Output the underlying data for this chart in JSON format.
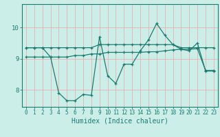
{
  "xlabel": "Humidex (Indice chaleur)",
  "bg_color": "#cceee8",
  "grid_color": "#e8b0b0",
  "line_color": "#1a7a6e",
  "xlim": [
    -0.5,
    23.5
  ],
  "ylim": [
    7.45,
    10.75
  ],
  "yticks": [
    8,
    9,
    10
  ],
  "xticks": [
    0,
    1,
    2,
    3,
    4,
    5,
    6,
    7,
    8,
    9,
    10,
    11,
    12,
    13,
    14,
    15,
    16,
    17,
    18,
    19,
    20,
    21,
    22,
    23
  ],
  "line1_x": [
    0,
    1,
    2,
    3,
    4,
    5,
    6,
    7,
    8,
    9,
    10,
    11,
    12,
    13,
    14,
    15,
    16,
    17,
    18,
    19,
    20,
    21,
    22,
    23
  ],
  "line1_y": [
    9.35,
    9.35,
    9.35,
    9.35,
    9.35,
    9.35,
    9.35,
    9.35,
    9.35,
    9.45,
    9.45,
    9.45,
    9.45,
    9.45,
    9.45,
    9.45,
    9.45,
    9.45,
    9.45,
    9.35,
    9.35,
    9.35,
    9.35,
    9.35
  ],
  "line2_x": [
    0,
    1,
    2,
    3,
    4,
    5,
    6,
    7,
    8,
    9,
    10,
    11,
    12,
    13,
    14,
    15,
    16,
    17,
    18,
    19,
    20,
    21,
    22,
    23
  ],
  "line2_y": [
    9.05,
    9.05,
    9.05,
    9.05,
    9.05,
    9.05,
    9.1,
    9.1,
    9.15,
    9.15,
    9.2,
    9.2,
    9.2,
    9.2,
    9.2,
    9.22,
    9.22,
    9.25,
    9.28,
    9.3,
    9.3,
    9.32,
    8.62,
    8.62
  ],
  "line3_x": [
    0,
    1,
    2,
    3,
    4,
    5,
    6,
    7,
    8,
    9,
    10,
    11,
    12,
    13,
    14,
    15,
    16,
    17,
    18,
    19,
    20,
    21,
    22,
    23
  ],
  "line3_y": [
    9.35,
    9.35,
    9.35,
    9.05,
    7.9,
    7.65,
    7.65,
    7.85,
    7.82,
    9.7,
    8.45,
    8.2,
    8.82,
    8.82,
    9.25,
    9.6,
    10.13,
    9.75,
    9.45,
    9.3,
    9.25,
    9.5,
    8.6,
    8.6
  ]
}
